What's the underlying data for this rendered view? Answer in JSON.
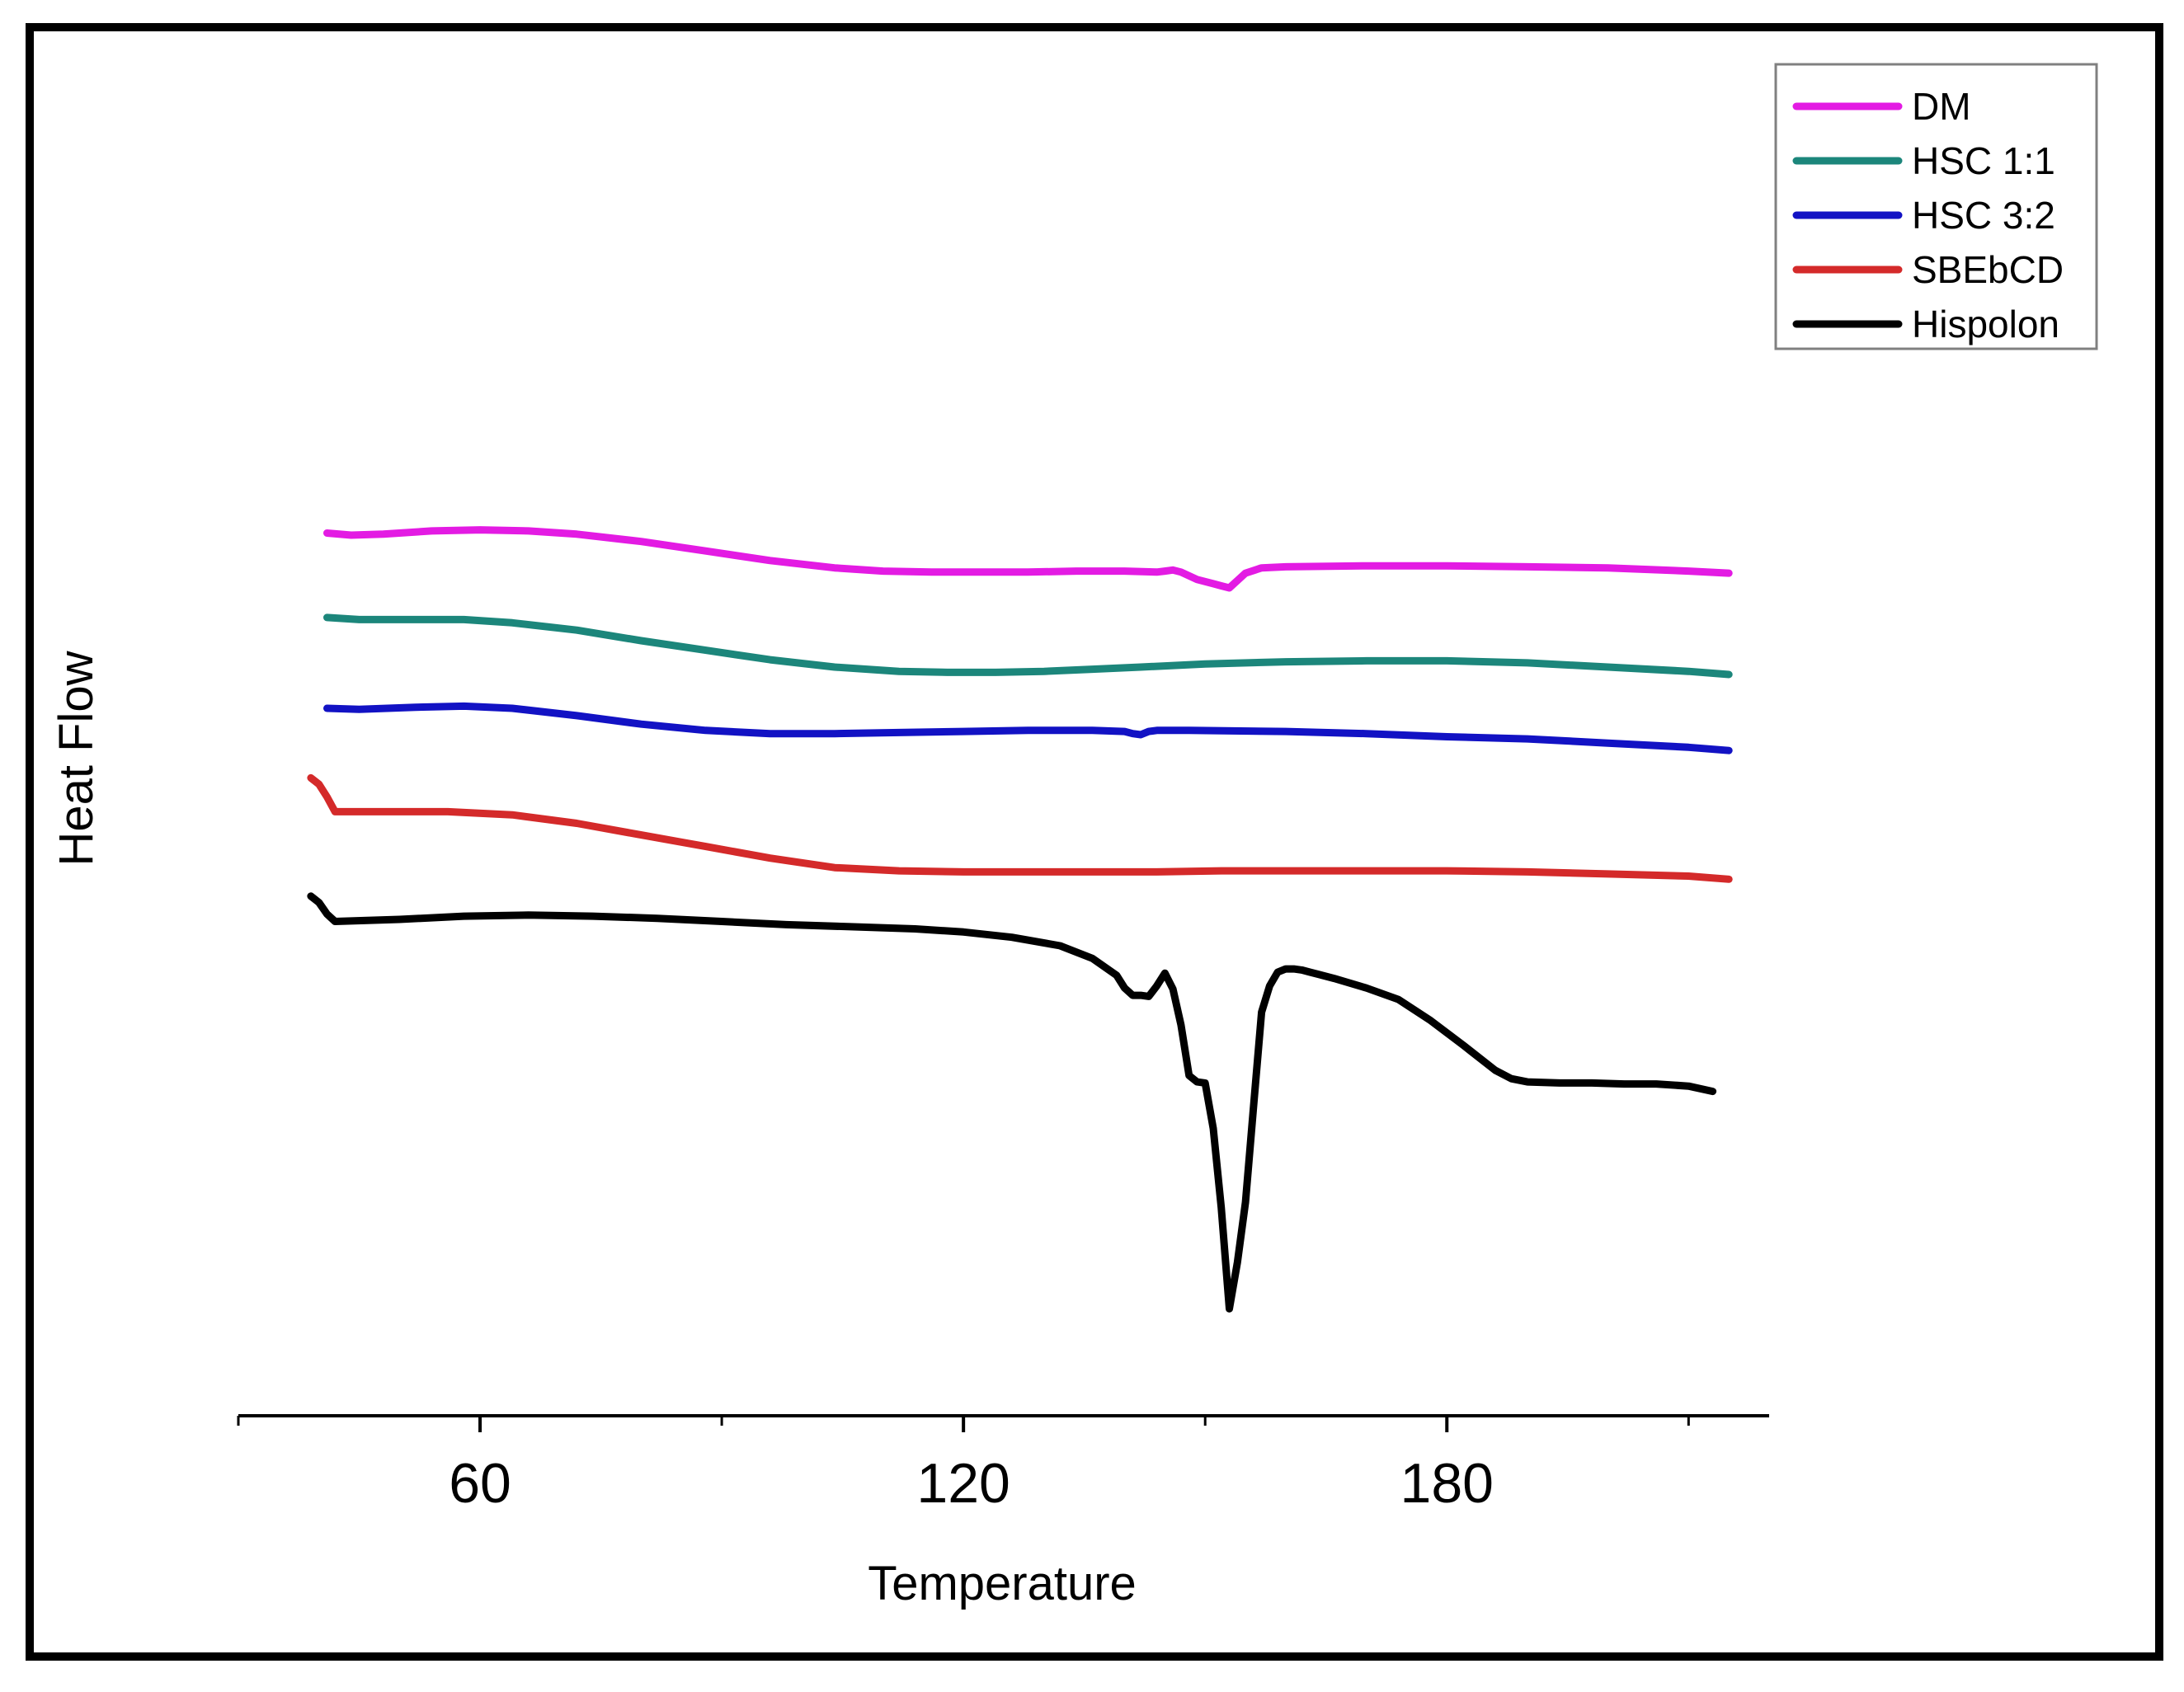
{
  "chart_data": {
    "type": "line",
    "title": "",
    "xlabel": "Temperature",
    "ylabel": "Heat Flow",
    "xlim": [
      30,
      220
    ],
    "xticks_major": [
      60,
      120,
      180
    ],
    "xticks_minor": [
      30,
      90,
      150,
      210
    ],
    "ylim": [
      0,
      100
    ],
    "yaxis_visible": false,
    "grid": false,
    "legend_position": "top-right",
    "series": [
      {
        "name": "DM",
        "color": "#e31be3",
        "x": [
          41,
          44,
          48,
          54,
          60,
          66,
          72,
          80,
          88,
          96,
          104,
          110,
          116,
          122,
          128,
          134,
          140,
          144,
          145,
          146,
          147,
          149,
          151,
          152,
          153,
          154,
          155,
          157,
          160,
          170,
          180,
          190,
          200,
          210,
          215
        ],
        "y": [
          78.4,
          78.2,
          78.3,
          78.6,
          78.7,
          78.6,
          78.3,
          77.6,
          76.7,
          75.8,
          75.1,
          74.8,
          74.7,
          74.7,
          74.7,
          74.8,
          74.8,
          74.7,
          74.8,
          74.9,
          74.7,
          74.0,
          73.6,
          73.4,
          73.2,
          73.9,
          74.6,
          75.1,
          75.2,
          75.3,
          75.3,
          75.2,
          75.1,
          74.8,
          74.6
        ]
      },
      {
        "name": "HSC 1:1",
        "color": "#1c867b",
        "x": [
          41,
          45,
          50,
          58,
          64,
          72,
          80,
          88,
          96,
          104,
          112,
          118,
          124,
          130,
          136,
          142,
          150,
          160,
          170,
          180,
          190,
          200,
          210,
          215
        ],
        "y": [
          70.4,
          70.2,
          70.2,
          70.2,
          69.9,
          69.2,
          68.2,
          67.3,
          66.4,
          65.7,
          65.3,
          65.2,
          65.2,
          65.3,
          65.5,
          65.7,
          66.0,
          66.2,
          66.3,
          66.3,
          66.1,
          65.7,
          65.3,
          65.0
        ]
      },
      {
        "name": "HSC 3:2",
        "color": "#1212c4",
        "x": [
          41,
          45,
          52,
          58,
          64,
          72,
          80,
          88,
          96,
          104,
          112,
          120,
          128,
          136,
          140,
          141,
          142,
          143,
          144,
          148,
          160,
          170,
          180,
          190,
          200,
          210,
          215
        ],
        "y": [
          61.8,
          61.7,
          61.9,
          62.0,
          61.8,
          61.1,
          60.3,
          59.7,
          59.4,
          59.4,
          59.5,
          59.6,
          59.7,
          59.7,
          59.6,
          59.4,
          59.3,
          59.6,
          59.7,
          59.7,
          59.6,
          59.4,
          59.1,
          58.9,
          58.5,
          58.1,
          57.8
        ]
      },
      {
        "name": "SBEbCD",
        "color": "#d42a2a",
        "x": [
          39,
          40,
          41,
          42,
          48,
          56,
          64,
          72,
          80,
          88,
          96,
          104,
          112,
          120,
          128,
          136,
          144,
          152,
          160,
          170,
          180,
          190,
          200,
          210,
          215
        ],
        "y": [
          55.2,
          54.6,
          53.4,
          52.0,
          52.0,
          52.0,
          51.7,
          50.9,
          49.8,
          48.7,
          47.6,
          46.7,
          46.4,
          46.3,
          46.3,
          46.3,
          46.3,
          46.4,
          46.4,
          46.4,
          46.4,
          46.3,
          46.1,
          45.9,
          45.6
        ]
      },
      {
        "name": "Hispolon",
        "color": "#000000",
        "x": [
          39,
          40,
          41,
          42,
          50,
          58,
          66,
          74,
          82,
          90,
          98,
          106,
          114,
          120,
          126,
          132,
          136,
          139,
          140,
          141,
          142,
          143,
          144,
          145,
          146,
          147,
          148,
          149,
          150,
          151,
          152,
          153,
          154,
          155,
          156,
          157,
          158,
          159,
          160,
          161,
          162,
          163,
          164,
          166,
          170,
          174,
          178,
          182,
          186,
          188,
          190,
          194,
          198,
          202,
          206,
          210,
          213
        ],
        "y": [
          44.0,
          43.4,
          42.3,
          41.6,
          41.8,
          42.1,
          42.2,
          42.1,
          41.9,
          41.6,
          41.3,
          41.1,
          40.9,
          40.6,
          40.1,
          39.3,
          38.1,
          36.5,
          35.3,
          34.6,
          34.6,
          34.5,
          35.5,
          36.7,
          35.2,
          31.8,
          27.0,
          26.4,
          26.3,
          22.0,
          14.5,
          4.9,
          9.3,
          15.0,
          24.0,
          33.0,
          35.5,
          36.8,
          37.1,
          37.1,
          37.0,
          36.8,
          36.6,
          36.2,
          35.3,
          34.2,
          32.2,
          29.9,
          27.5,
          26.7,
          26.4,
          26.3,
          26.3,
          26.2,
          26.2,
          26.0,
          25.5
        ]
      }
    ]
  }
}
